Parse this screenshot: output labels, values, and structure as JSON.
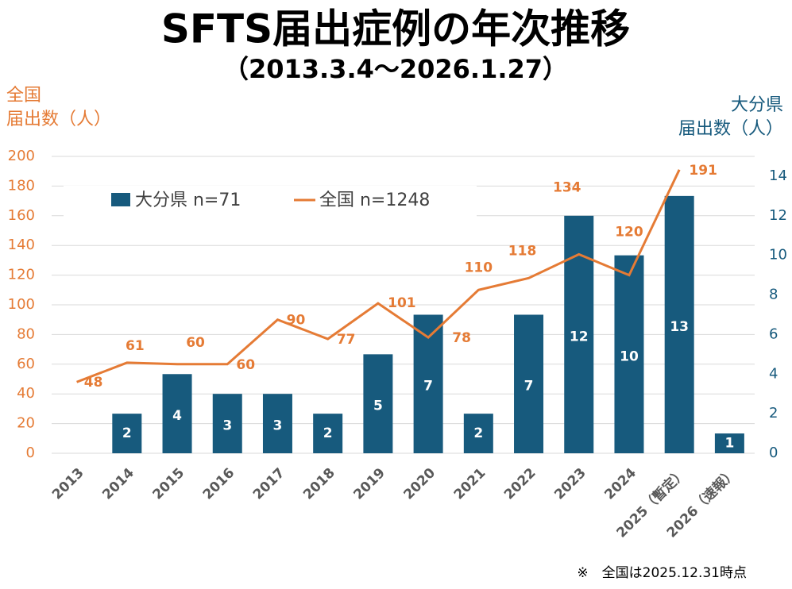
{
  "chart_data": {
    "type": "bar+line",
    "title": "SFTS届出症例の年次推移",
    "subtitle": "（2013.3.4～2026.1.27）",
    "y_label": "全国\n届出数（人）",
    "y2_label": "大分県\n届出数（人）",
    "note": "※　全国は2025.12.31時点",
    "categories": [
      "2013",
      "2014",
      "2015",
      "2016",
      "2017",
      "2018",
      "2019",
      "2020",
      "2021",
      "2022",
      "2023",
      "2024",
      "2025（暫定）",
      "2026（速報）"
    ],
    "series": [
      {
        "name": "大分県 n=71",
        "type": "bar",
        "axis": "y2",
        "color": "#175a7d",
        "values": [
          0,
          2,
          4,
          3,
          3,
          2,
          5,
          7,
          2,
          7,
          12,
          10,
          13,
          1
        ]
      },
      {
        "name": "全国 n=1248",
        "type": "line",
        "color": "#e57b35",
        "values": [
          48,
          61,
          60,
          60,
          90,
          77,
          101,
          78,
          110,
          118,
          134,
          120,
          191,
          null
        ]
      }
    ],
    "ylim": [
      0,
      200
    ],
    "yticks": [
      0,
      20,
      40,
      60,
      80,
      100,
      120,
      140,
      160,
      180,
      200
    ],
    "y2lim": [
      0,
      15
    ],
    "y2ticks": [
      0,
      2,
      4,
      6,
      8,
      10,
      12,
      14
    ],
    "grid": true
  }
}
